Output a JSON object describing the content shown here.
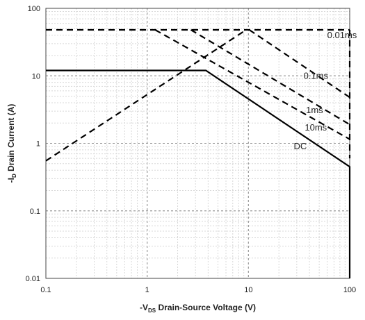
{
  "chart_data": {
    "type": "line",
    "title": "",
    "x_scale": "log",
    "y_scale": "log",
    "xlim": [
      0.1,
      100
    ],
    "ylim": [
      0.01,
      100
    ],
    "grid": true,
    "x_ticks": [
      "0.1",
      "1",
      "10",
      "100"
    ],
    "y_ticks": [
      "0.01",
      "0.1",
      "1",
      "10",
      "100"
    ],
    "xlabel": {
      "prefix": "-V",
      "sub": "DS",
      "rest": " Drain-Source Voltage (V)"
    },
    "ylabel": {
      "prefix": "-I",
      "sub": "D",
      "rest": " Drain Current (A)"
    },
    "series": [
      {
        "name": "DC",
        "style": "solid",
        "points": [
          [
            0.1,
            12
          ],
          [
            3.8,
            12
          ],
          [
            100,
            0.45
          ],
          [
            100,
            0.01
          ]
        ]
      },
      {
        "name": "10ms",
        "style": "dashed",
        "points": [
          [
            100,
            0.6
          ]
        ]
      },
      {
        "name": "1ms",
        "style": "dashed",
        "points": [
          [
            1.2,
            48
          ],
          [
            100,
            1.15
          ]
        ]
      },
      {
        "name": "0.1ms",
        "style": "dashed",
        "points": [
          [
            2.7,
            48
          ],
          [
            100,
            1.9
          ]
        ]
      },
      {
        "name": "0.01ms",
        "style": "dashed",
        "points": [
          [
            10.2,
            48
          ],
          [
            100,
            4.8
          ]
        ]
      },
      {
        "name": "",
        "style": "dashed",
        "points": [
          [
            0.1,
            48
          ],
          [
            100,
            48
          ]
        ]
      },
      {
        "name": "",
        "style": "dashed",
        "points": [
          [
            0.1,
            0.55
          ],
          [
            9.5,
            48
          ]
        ]
      },
      {
        "name": "",
        "style": "dashed",
        "points": [
          [
            100,
            48
          ],
          [
            100,
            0.6
          ]
        ]
      }
    ],
    "annotations": [
      {
        "text": "0.01ms",
        "x": 60,
        "y": 36
      },
      {
        "text": "0.1ms",
        "x": 35,
        "y": 9
      },
      {
        "text": "1ms",
        "x": 37,
        "y": 2.8
      },
      {
        "text": "10ms",
        "x": 36,
        "y": 1.55
      },
      {
        "text": "DC",
        "x": 28,
        "y": 0.82
      }
    ]
  }
}
